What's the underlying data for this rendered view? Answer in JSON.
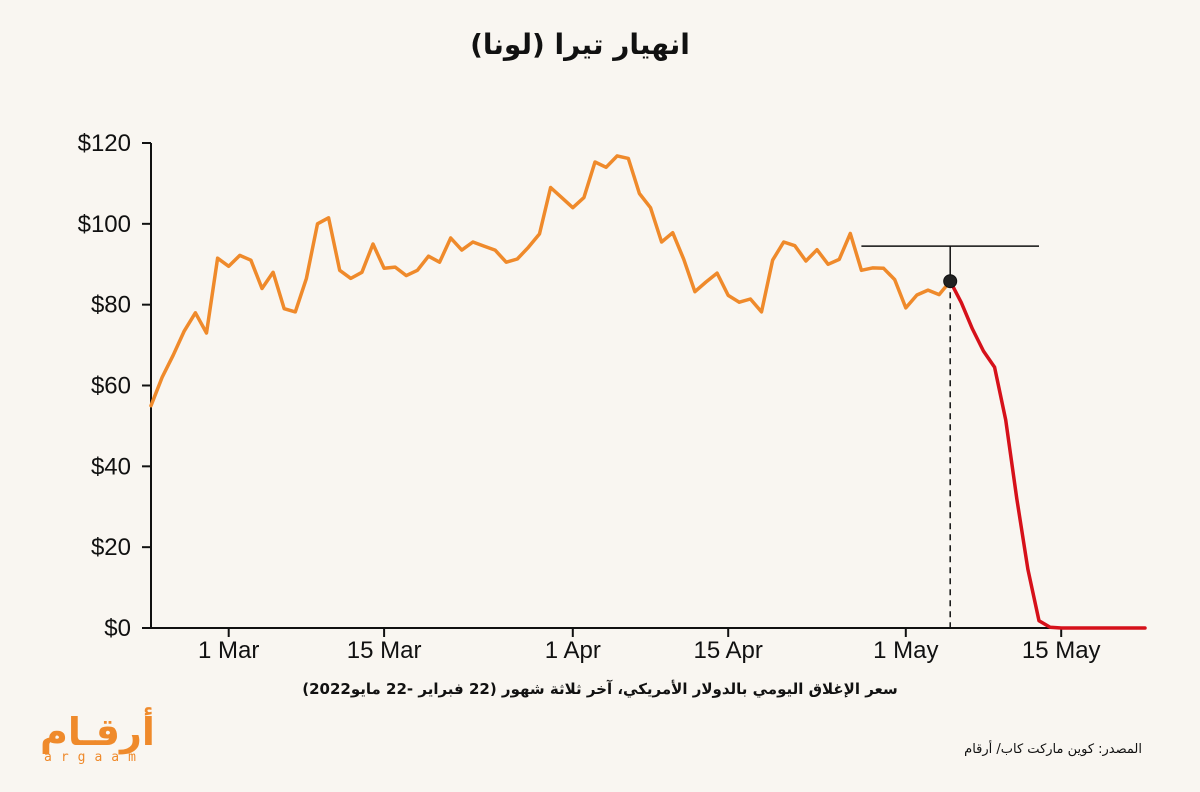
{
  "header": {
    "title": "انهيار تيرا (لونا)"
  },
  "footer": {
    "subtitle": "سعر الإغلاق اليومي بالدولار الأمريكي، آخر ثلاثة شهور (22 فبراير -22 مايو2022)",
    "source": "المصدر: كوين ماركت كاب/ أرقام"
  },
  "logo": {
    "arabic": "أرقـام",
    "latin": "argaam"
  },
  "chart_data": {
    "type": "line",
    "x_unit": "date",
    "y_unit": "USD",
    "ylim": [
      0,
      120
    ],
    "yticks": [
      0,
      20,
      40,
      60,
      80,
      100,
      120
    ],
    "ytick_labels": [
      "$0",
      "$20",
      "$40",
      "$60",
      "$80",
      "$100",
      "$120"
    ],
    "xlim": [
      "2022-02-22",
      "2022-05-22"
    ],
    "xticks": [
      "2022-03-01",
      "2022-03-15",
      "2022-04-01",
      "2022-04-15",
      "2022-05-01",
      "2022-05-15"
    ],
    "xtick_labels": [
      "1 Mar",
      "15 Mar",
      "1 Apr",
      "15 Apr",
      "1 May",
      "15 May"
    ],
    "grid": false,
    "colors": {
      "before": "#ef8a2b",
      "crash": "#d6111a",
      "axis": "#111111"
    },
    "marker": {
      "date": "2022-05-05",
      "value": 85.8
    },
    "reference_line": {
      "value": 94.5,
      "from": "2022-04-27",
      "to": "2022-05-13"
    },
    "series": [
      {
        "segment": "before",
        "dates": [
          "2022-02-22",
          "2022-02-23",
          "2022-02-24",
          "2022-02-25",
          "2022-02-26",
          "2022-02-27",
          "2022-02-28",
          "2022-03-01",
          "2022-03-02",
          "2022-03-03",
          "2022-03-04",
          "2022-03-05",
          "2022-03-06",
          "2022-03-07",
          "2022-03-08",
          "2022-03-09",
          "2022-03-10",
          "2022-03-11",
          "2022-03-12",
          "2022-03-13",
          "2022-03-14",
          "2022-03-15",
          "2022-03-16",
          "2022-03-17",
          "2022-03-18",
          "2022-03-19",
          "2022-03-20",
          "2022-03-21",
          "2022-03-22",
          "2022-03-23",
          "2022-03-24",
          "2022-03-25",
          "2022-03-26",
          "2022-03-27",
          "2022-03-28",
          "2022-03-29",
          "2022-03-30",
          "2022-03-31",
          "2022-04-01",
          "2022-04-02",
          "2022-04-03",
          "2022-04-04",
          "2022-04-05",
          "2022-04-06",
          "2022-04-07",
          "2022-04-08",
          "2022-04-09",
          "2022-04-10",
          "2022-04-11",
          "2022-04-12",
          "2022-04-13",
          "2022-04-14",
          "2022-04-15",
          "2022-04-16",
          "2022-04-17",
          "2022-04-18",
          "2022-04-19",
          "2022-04-20",
          "2022-04-21",
          "2022-04-22",
          "2022-04-23",
          "2022-04-24",
          "2022-04-25",
          "2022-04-26",
          "2022-04-27",
          "2022-04-28",
          "2022-04-29",
          "2022-04-30",
          "2022-05-01",
          "2022-05-02",
          "2022-05-03",
          "2022-05-04",
          "2022-05-05"
        ],
        "values": [
          55,
          62,
          67.5,
          73.5,
          78,
          73,
          91.5,
          89.5,
          92.2,
          91,
          84,
          88,
          79,
          78.2,
          86.5,
          100,
          101.5,
          88.5,
          86.5,
          88,
          95,
          89,
          89.3,
          87.2,
          88.5,
          92,
          90.5,
          96.5,
          93.5,
          95.5,
          94.5,
          93.5,
          90.5,
          91.3,
          94.2,
          97.5,
          109,
          106.5,
          104,
          106.5,
          115.3,
          114,
          116.8,
          116.2,
          107.5,
          104,
          95.5,
          97.8,
          91.2,
          83.2,
          85.6,
          87.8,
          82.3,
          80.6,
          81.4,
          78.2,
          91,
          95.5,
          94.6,
          90.8,
          93.6,
          90,
          91.2,
          97.6,
          88.5,
          89.1,
          89,
          86.2,
          79.2,
          82.4,
          83.6,
          82.5,
          85.8
        ]
      },
      {
        "segment": "crash",
        "dates": [
          "2022-05-05",
          "2022-05-06",
          "2022-05-07",
          "2022-05-08",
          "2022-05-09",
          "2022-05-10",
          "2022-05-11",
          "2022-05-12",
          "2022-05-13",
          "2022-05-14",
          "2022-05-15",
          "2022-05-16",
          "2022-05-17",
          "2022-05-18",
          "2022-05-19",
          "2022-05-20",
          "2022-05-21",
          "2022-05-22"
        ],
        "values": [
          85.8,
          80.5,
          74,
          68.5,
          64.5,
          51.5,
          32,
          14.5,
          1.8,
          0.2,
          0,
          0,
          0,
          0,
          0,
          0,
          0,
          0
        ]
      }
    ]
  }
}
